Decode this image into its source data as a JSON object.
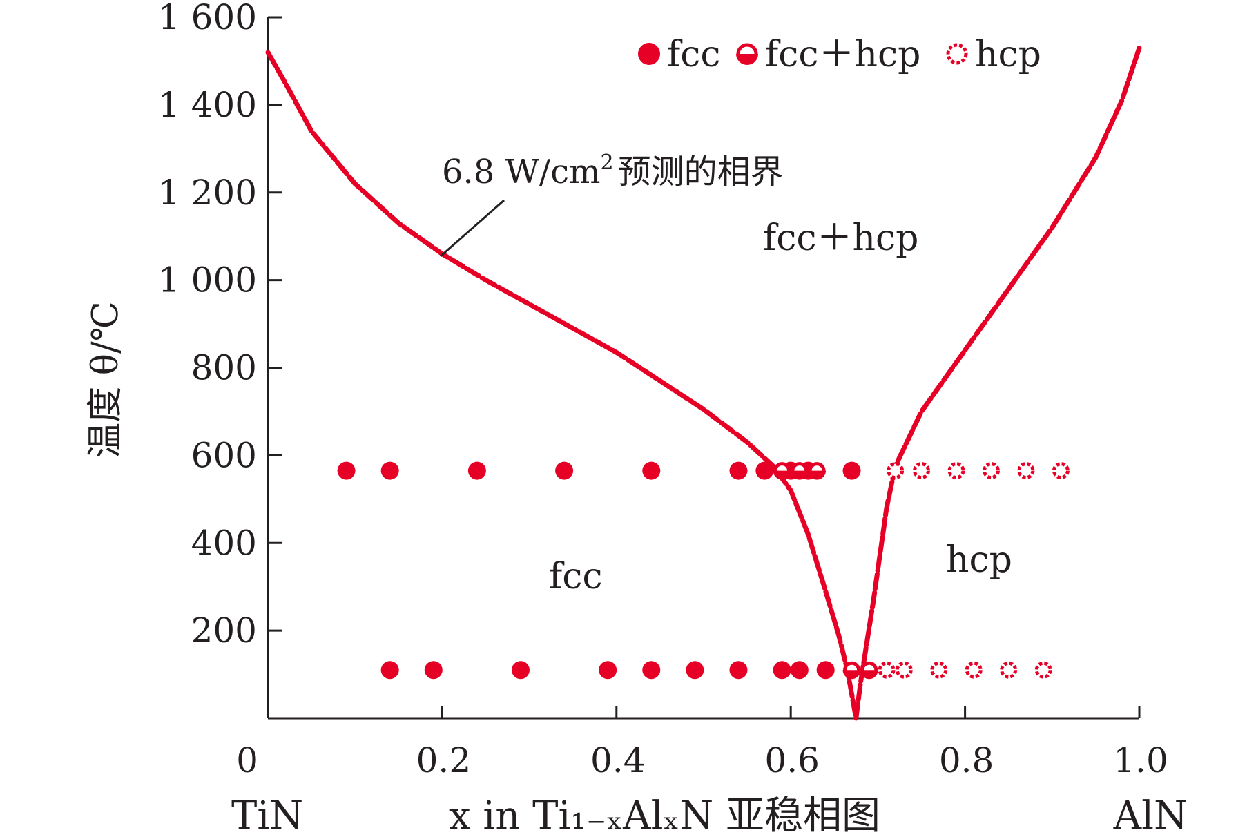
{
  "chart_data": {
    "type": "scatter",
    "title": "",
    "xlabel": "x in Ti₁₋ₓAlₓN 亚稳相图",
    "ylabel": "温度 θ/℃",
    "xlim": [
      0,
      1.0
    ],
    "ylim": [
      0,
      1600
    ],
    "x_ticks": [
      0,
      0.2,
      0.4,
      0.6,
      0.8,
      1.0
    ],
    "x_tick_labels": [
      "0",
      "0.2",
      "0.4",
      "0.6",
      "0.8",
      "1.0"
    ],
    "y_ticks": [
      200,
      400,
      600,
      800,
      1000,
      1200,
      1400,
      1600
    ],
    "y_tick_labels": [
      "200",
      "400",
      "600",
      "800",
      "1 000",
      "1 200",
      "1 400",
      "1 600"
    ],
    "composition_labels": {
      "left": "TiN",
      "right": "AlN"
    },
    "legend": {
      "position": "top-right",
      "entries": [
        {
          "label": "fcc",
          "marker": "filled"
        },
        {
          "label": "fcc＋hcp",
          "marker": "half"
        },
        {
          "label": "hcp",
          "marker": "open"
        }
      ]
    },
    "region_labels": [
      "fcc＋hcp",
      "fcc",
      "hcp"
    ],
    "annotation": {
      "text_main": "6.8  W/cm",
      "text_sup": "2",
      "text_tail": "预测的相界"
    },
    "colors": {
      "marker": "#e60026",
      "boundary": "#e60026",
      "axis": "#231f20"
    },
    "phase_boundary": {
      "left_branch": [
        [
          0.0,
          1520
        ],
        [
          0.02,
          1450
        ],
        [
          0.05,
          1340
        ],
        [
          0.1,
          1220
        ],
        [
          0.15,
          1130
        ],
        [
          0.2,
          1060
        ],
        [
          0.25,
          1000
        ],
        [
          0.3,
          945
        ],
        [
          0.35,
          890
        ],
        [
          0.4,
          835
        ],
        [
          0.45,
          770
        ],
        [
          0.5,
          705
        ],
        [
          0.55,
          630
        ],
        [
          0.58,
          575
        ],
        [
          0.6,
          520
        ],
        [
          0.62,
          420
        ],
        [
          0.64,
          290
        ],
        [
          0.655,
          190
        ],
        [
          0.665,
          110
        ],
        [
          0.675,
          0
        ]
      ],
      "right_branch": [
        [
          0.675,
          0
        ],
        [
          0.68,
          80
        ],
        [
          0.695,
          270
        ],
        [
          0.71,
          480
        ],
        [
          0.72,
          575
        ],
        [
          0.75,
          700
        ],
        [
          0.8,
          840
        ],
        [
          0.85,
          980
        ],
        [
          0.9,
          1120
        ],
        [
          0.95,
          1280
        ],
        [
          0.98,
          1410
        ],
        [
          1.0,
          1530
        ]
      ]
    },
    "series": [
      {
        "name": "fcc",
        "marker": "filled",
        "points": [
          [
            0.09,
            565
          ],
          [
            0.14,
            565
          ],
          [
            0.24,
            565
          ],
          [
            0.34,
            565
          ],
          [
            0.44,
            565
          ],
          [
            0.54,
            565
          ],
          [
            0.57,
            565
          ],
          [
            0.6,
            565
          ],
          [
            0.62,
            565
          ],
          [
            0.67,
            565
          ],
          [
            0.14,
            110
          ],
          [
            0.19,
            110
          ],
          [
            0.29,
            110
          ],
          [
            0.39,
            110
          ],
          [
            0.44,
            110
          ],
          [
            0.49,
            110
          ],
          [
            0.54,
            110
          ],
          [
            0.59,
            110
          ],
          [
            0.61,
            110
          ],
          [
            0.64,
            110
          ]
        ]
      },
      {
        "name": "fcc＋hcp",
        "marker": "half",
        "points": [
          [
            0.59,
            565
          ],
          [
            0.61,
            565
          ],
          [
            0.63,
            565
          ],
          [
            0.67,
            110
          ],
          [
            0.69,
            110
          ]
        ]
      },
      {
        "name": "hcp",
        "marker": "open",
        "points": [
          [
            0.72,
            565
          ],
          [
            0.75,
            565
          ],
          [
            0.79,
            565
          ],
          [
            0.83,
            565
          ],
          [
            0.87,
            565
          ],
          [
            0.91,
            565
          ],
          [
            0.71,
            110
          ],
          [
            0.73,
            110
          ],
          [
            0.77,
            110
          ],
          [
            0.81,
            110
          ],
          [
            0.85,
            110
          ],
          [
            0.89,
            110
          ]
        ]
      }
    ]
  }
}
